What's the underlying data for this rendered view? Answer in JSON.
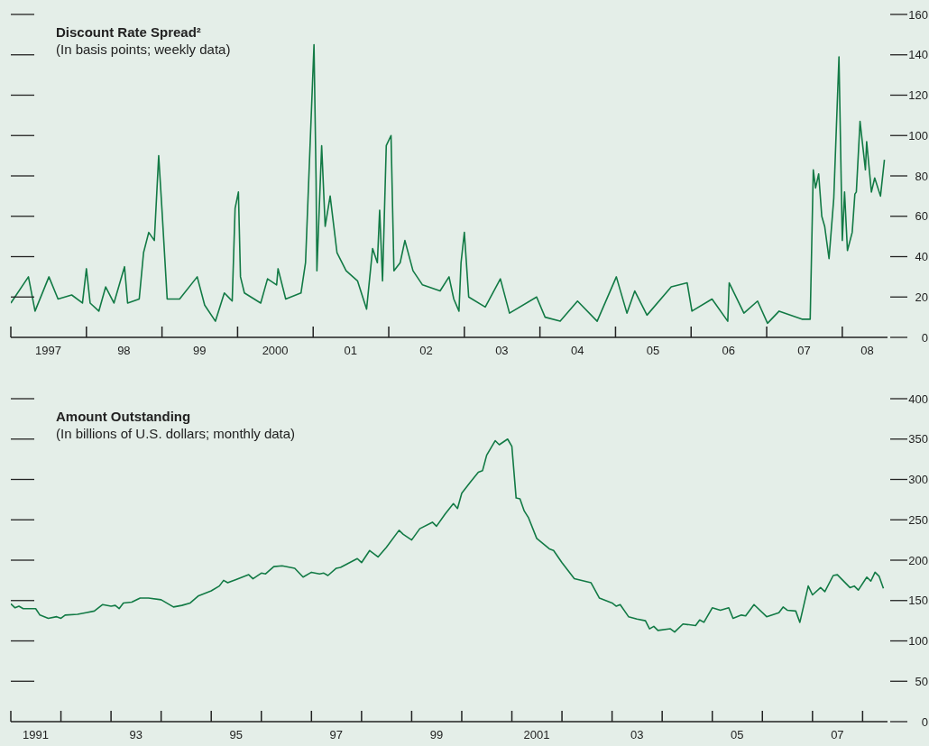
{
  "chart_data": [
    {
      "type": "line",
      "title": "Discount Rate Spread²",
      "subtitle": "(In basis points; weekly data)",
      "color": "#127a45",
      "x": [
        "1997-01-01",
        "1997-03-27",
        "1997-04-28",
        "1997-07-04",
        "1997-08-17",
        "1997-10-22",
        "1997-12-13",
        "1998-01-01",
        "1998-01-19",
        "1998-03-02",
        "1998-04-04",
        "1998-05-14",
        "1998-07-04",
        "1998-07-19",
        "1998-09-13",
        "1998-10-04",
        "1998-10-29",
        "1998-11-25",
        "1998-12-16",
        "1999-01-01",
        "1999-01-26",
        "1999-03-27",
        "1999-06-20",
        "1999-07-26",
        "1999-09-16",
        "1999-10-29",
        "1999-12-06",
        "1999-12-20",
        "2000-01-05",
        "2000-01-15",
        "2000-02-03",
        "2000-04-22",
        "2000-05-25",
        "2000-07-08",
        "2000-07-15",
        "2000-08-21",
        "2000-11-03",
        "2000-11-25",
        "2001-01-05",
        "2001-01-15",
        "2001-01-19",
        "2001-02-11",
        "2001-02-28",
        "2001-03-24",
        "2001-04-26",
        "2001-06-09",
        "2001-08-03",
        "2001-09-16",
        "2001-10-15",
        "2001-11-07",
        "2001-11-18",
        "2001-12-02",
        "2001-12-20",
        "2002-01-12",
        "2002-01-26",
        "2002-02-25",
        "2002-03-20",
        "2002-04-28",
        "2002-06-13",
        "2002-09-06",
        "2002-10-19",
        "2002-11-11",
        "2002-12-06",
        "2002-12-16",
        "2003-01-01",
        "2003-01-22",
        "2003-04-12",
        "2003-06-24",
        "2003-08-07",
        "2003-12-16",
        "2004-01-26",
        "2004-04-08",
        "2004-07-01",
        "2004-10-04",
        "2005-01-05",
        "2005-02-25",
        "2005-04-04",
        "2005-06-02",
        "2005-09-27",
        "2005-12-13",
        "2006-01-05",
        "2006-04-12",
        "2006-06-27",
        "2006-07-04",
        "2006-09-13",
        "2006-11-18",
        "2007-01-05",
        "2007-03-02",
        "2007-06-20",
        "2007-07-30",
        "2007-08-14",
        "2007-08-25",
        "2007-09-09",
        "2007-09-24",
        "2007-10-08",
        "2007-10-29",
        "2007-11-21",
        "2007-12-16",
        "2008-01-01",
        "2008-01-12",
        "2008-01-26",
        "2008-02-18",
        "2008-03-02",
        "2008-03-09",
        "2008-03-27",
        "2008-04-22",
        "2008-04-28",
        "2008-05-21",
        "2008-06-06",
        "2008-07-04",
        "2008-07-23"
      ],
      "values": [
        17,
        30,
        13,
        30,
        19,
        21,
        17,
        34,
        17,
        13,
        25,
        17,
        35,
        17,
        19,
        42,
        52,
        48,
        90,
        63,
        19,
        19,
        30,
        16,
        8,
        22,
        18,
        64,
        72,
        30,
        22,
        17,
        29,
        26,
        34,
        19,
        22,
        37,
        145,
        78,
        33,
        95,
        55,
        70,
        42,
        33,
        28,
        14,
        44,
        37,
        63,
        28,
        95,
        100,
        33,
        37,
        48,
        33,
        26,
        23,
        30,
        19,
        13,
        37,
        52,
        20,
        15,
        29,
        12,
        20,
        10,
        8,
        18,
        8,
        30,
        12,
        23,
        11,
        25,
        27,
        13,
        19,
        8,
        27,
        12,
        18,
        7,
        13,
        9,
        9,
        83,
        74,
        81,
        60,
        55,
        39,
        69,
        139,
        48,
        72,
        43,
        52,
        71,
        72,
        107,
        83,
        97,
        72,
        79,
        70,
        88
      ],
      "xlim": [
        "1997-01-01",
        "2008-08-07"
      ],
      "xticks": [
        {
          "value": "1997-01-01",
          "label": null
        },
        {
          "value": "1998-01-01",
          "label": null
        },
        {
          "value": "1999-01-01",
          "label": null
        },
        {
          "value": "2000-01-01",
          "label": null
        },
        {
          "value": "2001-01-01",
          "label": null
        },
        {
          "value": "2002-01-01",
          "label": null
        },
        {
          "value": "2003-01-01",
          "label": null
        },
        {
          "value": "2004-01-01",
          "label": null
        },
        {
          "value": "2005-01-01",
          "label": null
        },
        {
          "value": "2006-01-01",
          "label": null
        },
        {
          "value": "2007-01-01",
          "label": null
        },
        {
          "value": "2008-01-01",
          "label": null
        },
        {
          "value": "1997-07-01",
          "label": "1997"
        },
        {
          "value": "1998-07-01",
          "label": "98"
        },
        {
          "value": "1999-07-01",
          "label": "99"
        },
        {
          "value": "2000-07-01",
          "label": "2000"
        },
        {
          "value": "2001-07-01",
          "label": "01"
        },
        {
          "value": "2002-07-01",
          "label": "02"
        },
        {
          "value": "2003-07-01",
          "label": "03"
        },
        {
          "value": "2004-07-01",
          "label": "04"
        },
        {
          "value": "2005-07-01",
          "label": "05"
        },
        {
          "value": "2006-07-01",
          "label": "06"
        },
        {
          "value": "2007-07-01",
          "label": "07"
        },
        {
          "value": "2008-05-01",
          "label": "08"
        }
      ],
      "ylim": [
        0,
        160
      ],
      "yticks": [
        0,
        20,
        40,
        60,
        80,
        100,
        120,
        140,
        160
      ]
    },
    {
      "type": "line",
      "title": "Amount Outstanding",
      "subtitle": "(In billions of U.S. dollars; monthly data)",
      "color": "#127a45",
      "x": [
        "1991-01",
        "1991-02",
        "1991-03",
        "1991-04",
        "1991-07",
        "1991-08",
        "1991-10",
        "1991-12",
        "1992-01",
        "1992-02",
        "1992-05",
        "1992-07",
        "1992-09",
        "1992-11",
        "1993-01",
        "1993-02",
        "1993-03",
        "1993-04",
        "1993-06",
        "1993-08",
        "1993-10",
        "1994-01",
        "1994-04",
        "1994-06",
        "1994-08",
        "1994-10",
        "1995-01",
        "1995-03",
        "1995-04",
        "1995-05",
        "1995-07",
        "1995-10",
        "1995-11",
        "1996-01",
        "1996-02",
        "1996-04",
        "1996-06",
        "1996-09",
        "1996-11",
        "1997-01",
        "1997-03",
        "1997-04",
        "1997-05",
        "1997-07",
        "1997-08",
        "1997-12",
        "1998-01",
        "1998-03",
        "1998-05",
        "1998-07",
        "1998-10",
        "1998-11",
        "1999-01",
        "1999-03",
        "1999-06",
        "1999-07",
        "1999-09",
        "1999-11",
        "1999-12",
        "2000-01",
        "2000-03",
        "2000-05",
        "2000-06",
        "2000-07",
        "2000-09",
        "2000-10",
        "2000-12",
        "2001-01",
        "2001-02",
        "2001-03",
        "2001-04",
        "2001-05",
        "2001-07",
        "2001-10",
        "2001-11",
        "2002-01",
        "2002-04",
        "2002-08",
        "2002-10",
        "2003-01",
        "2003-02",
        "2003-03",
        "2003-05",
        "2003-07",
        "2003-09",
        "2003-10",
        "2003-11",
        "2003-12",
        "2004-03",
        "2004-04",
        "2004-06",
        "2004-09",
        "2004-10",
        "2004-11",
        "2005-01",
        "2005-03",
        "2005-05",
        "2005-06",
        "2005-08",
        "2005-09",
        "2005-11",
        "2006-02",
        "2006-05",
        "2006-06",
        "2006-07",
        "2006-09",
        "2006-10",
        "2006-12",
        "2007-01",
        "2007-03",
        "2007-04",
        "2007-06",
        "2007-07",
        "2007-10",
        "2007-11",
        "2007-12",
        "2008-02",
        "2008-03",
        "2008-04",
        "2008-05",
        "2008-06"
      ],
      "values": [
        146,
        141,
        143,
        140,
        140,
        132,
        128,
        130,
        128,
        132,
        133,
        135,
        137,
        145,
        143,
        144,
        140,
        147,
        148,
        153,
        153,
        151,
        142,
        144,
        147,
        156,
        162,
        168,
        175,
        172,
        176,
        182,
        177,
        184,
        183,
        192,
        193,
        190,
        179,
        185,
        183,
        184,
        181,
        190,
        191,
        202,
        197,
        212,
        204,
        216,
        237,
        232,
        225,
        239,
        247,
        242,
        257,
        270,
        264,
        283,
        296,
        309,
        311,
        330,
        348,
        343,
        350,
        341,
        277,
        276,
        261,
        253,
        227,
        214,
        212,
        197,
        177,
        172,
        153,
        147,
        143,
        145,
        130,
        127,
        125,
        115,
        118,
        113,
        115,
        111,
        121,
        119,
        126,
        123,
        141,
        138,
        141,
        128,
        132,
        131,
        145,
        130,
        135,
        142,
        138,
        137,
        123,
        168,
        157,
        166,
        161,
        181,
        182,
        166,
        168,
        163,
        179,
        174,
        185,
        180,
        165
      ],
      "xlim": [
        "1991-01",
        "2008-07"
      ],
      "xticks": [
        {
          "value": "1991-01",
          "label": null
        },
        {
          "value": "1992-01",
          "label": null
        },
        {
          "value": "1993-01",
          "label": null
        },
        {
          "value": "1994-01",
          "label": null
        },
        {
          "value": "1995-01",
          "label": null
        },
        {
          "value": "1996-01",
          "label": null
        },
        {
          "value": "1997-01",
          "label": null
        },
        {
          "value": "1998-01",
          "label": null
        },
        {
          "value": "1999-01",
          "label": null
        },
        {
          "value": "2000-01",
          "label": null
        },
        {
          "value": "2001-01",
          "label": null
        },
        {
          "value": "2002-01",
          "label": null
        },
        {
          "value": "2003-01",
          "label": null
        },
        {
          "value": "2004-01",
          "label": null
        },
        {
          "value": "2005-01",
          "label": null
        },
        {
          "value": "2006-01",
          "label": null
        },
        {
          "value": "2007-01",
          "label": null
        },
        {
          "value": "2008-01",
          "label": null
        },
        {
          "value": "1991-07",
          "label": "1991"
        },
        {
          "value": "1993-07",
          "label": "93"
        },
        {
          "value": "1995-07",
          "label": "95"
        },
        {
          "value": "1997-07",
          "label": "97"
        },
        {
          "value": "1999-07",
          "label": "99"
        },
        {
          "value": "2001-07",
          "label": "2001"
        },
        {
          "value": "2003-07",
          "label": "03"
        },
        {
          "value": "2005-07",
          "label": "05"
        },
        {
          "value": "2007-07",
          "label": "07"
        }
      ],
      "ylim": [
        0,
        400
      ],
      "yticks": [
        0,
        50,
        100,
        150,
        200,
        250,
        300,
        350,
        400
      ]
    }
  ]
}
